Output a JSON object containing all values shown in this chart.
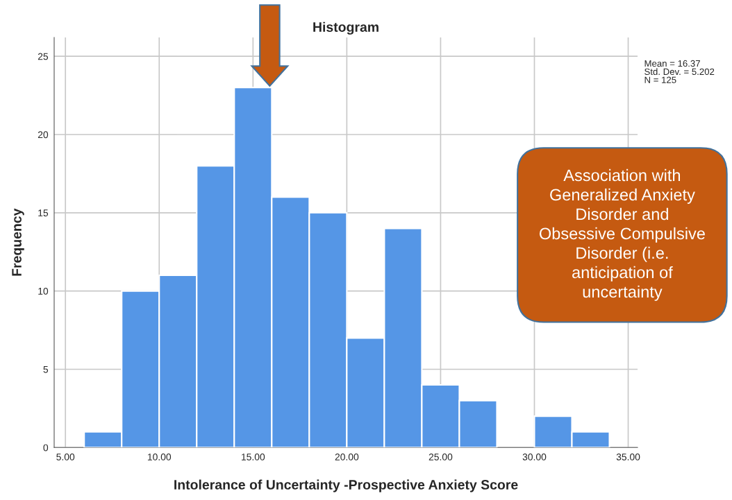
{
  "chart_data": {
    "type": "histogram",
    "title": "Histogram",
    "xlabel": "Intolerance of Uncertainty -Prospective Anxiety Score",
    "ylabel": "Frequency",
    "bins": [
      6,
      8,
      10,
      12,
      14,
      16,
      18,
      20,
      22,
      24,
      26,
      28,
      30,
      32,
      34
    ],
    "values": [
      1,
      10,
      11,
      18,
      23,
      16,
      15,
      7,
      14,
      4,
      3,
      0,
      2,
      1
    ],
    "color": "#5596e6",
    "xlim": [
      4.4,
      35.5
    ],
    "xticks": [
      {
        "value": 5,
        "label": "5.00"
      },
      {
        "value": 10,
        "label": "10.00"
      },
      {
        "value": 15,
        "label": "15.00"
      },
      {
        "value": 20,
        "label": "20.00"
      },
      {
        "value": 25,
        "label": "25.00"
      },
      {
        "value": 30,
        "label": "30.00"
      },
      {
        "value": 35,
        "label": "35.00"
      }
    ],
    "ylim": [
      0,
      26.2
    ],
    "yticks": [
      0,
      5,
      10,
      15,
      20,
      25
    ],
    "grid": true,
    "annotations": [
      "Mean = 16.37\nStd. Dev. = 5.202\nN = 125",
      "Association with Generalized Anxiety Disorder and Obsessive Compulsive Disorder (i.e. anticipation of uncertainty"
    ]
  }
}
